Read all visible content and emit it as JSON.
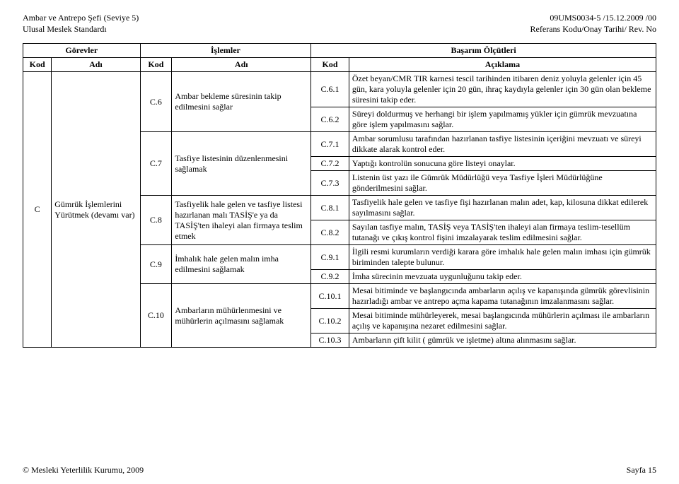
{
  "header": {
    "left": "Ambar ve Antrepo Şefi (Seviye 5)\nUlusal Meslek Standardı",
    "right": "09UMS0034-5 /15.12.2009 /00\nReferans Kodu/Onay Tarihi/ Rev. No"
  },
  "columns": {
    "gorevler": "Görevler",
    "islemler": "İşlemler",
    "basarim": "Başarım Ölçütleri",
    "kod": "Kod",
    "adi": "Adı",
    "aciklama": "Açıklama"
  },
  "gorev": {
    "kod": "C",
    "adi": "Gümrük İşlemlerini Yürütmek (devamı var)"
  },
  "islem": {
    "c6": {
      "kod": "C.6",
      "adi": "Ambar bekleme süresinin takip edilmesini sağlar"
    },
    "c7": {
      "kod": "C.7",
      "adi": "Tasfiye listesinin düzenlenmesini sağlamak"
    },
    "c8": {
      "kod": "C.8",
      "adi": "Tasfiyelik hale gelen ve tasfiye listesi hazırlanan malı TASİŞ'e ya da TASİŞ'ten ihaleyi alan firmaya teslim etmek"
    },
    "c9": {
      "kod": "C.9",
      "adi": "İmhalık hale gelen malın imha edilmesini sağlamak"
    },
    "c10": {
      "kod": "C.10",
      "adi": "Ambarların mühürlenmesini ve mühürlerin açılmasını sağlamak"
    }
  },
  "basarim": {
    "c61": {
      "kod": "C.6.1",
      "aciklama": "Özet beyan/CMR TIR karnesi tescil tarihinden itibaren deniz yoluyla gelenler için 45 gün, kara yoluyla gelenler için 20 gün, ihraç kaydıyla gelenler için 30 gün olan bekleme süresini takip eder."
    },
    "c62": {
      "kod": "C.6.2",
      "aciklama": "Süreyi doldurmuş ve herhangi bir işlem yapılmamış yükler için gümrük mevzuatına göre işlem yapılmasını sağlar."
    },
    "c71": {
      "kod": "C.7.1",
      "aciklama": "Ambar sorumlusu tarafından hazırlanan tasfiye listesinin içeriğini mevzuatı ve süreyi dikkate alarak kontrol eder."
    },
    "c72": {
      "kod": "C.7.2",
      "aciklama": "Yaptığı kontrolün sonucuna göre listeyi onaylar."
    },
    "c73": {
      "kod": "C.7.3",
      "aciklama": "Listenin üst yazı ile Gümrük Müdürlüğü veya Tasfiye İşleri Müdürlüğüne gönderilmesini sağlar."
    },
    "c81": {
      "kod": "C.8.1",
      "aciklama": "Tasfiyelik hale gelen ve tasfiye fişi hazırlanan malın adet, kap, kilosuna dikkat edilerek sayılmasını sağlar."
    },
    "c82": {
      "kod": "C.8.2",
      "aciklama": "Sayılan tasfiye malın, TASİŞ veya TASİŞ'ten ihaleyi alan firmaya teslim-tesellüm tutanağı ve çıkış kontrol fişini imzalayarak teslim edilmesini sağlar."
    },
    "c91": {
      "kod": "C.9.1",
      "aciklama": "İlgili resmi kurumların verdiği karara göre imhalık hale gelen malın imhası için gümrük biriminden talepte bulunur."
    },
    "c92": {
      "kod": "C.9.2",
      "aciklama": "İmha sürecinin mevzuata uygunluğunu takip eder."
    },
    "c101": {
      "kod": "C.10.1",
      "aciklama": "Mesai bitiminde ve başlangıcında ambarların açılış ve kapanışında gümrük görevlisinin hazırladığı ambar ve antrepo açma kapama tutanağının imzalanmasını sağlar."
    },
    "c102": {
      "kod": "C.10.2",
      "aciklama": "Mesai bitiminde mühürleyerek, mesai başlangıcında mühürlerin açılması ile ambarların açılış ve kapanışına nezaret edilmesini sağlar."
    },
    "c103": {
      "kod": "C.10.3",
      "aciklama": "Ambarların çift kilit ( gümrük ve işletme) altına alınmasını sağlar."
    }
  },
  "footer": {
    "left": "© Mesleki Yeterlilik Kurumu, 2009",
    "right": "Sayfa 15"
  }
}
